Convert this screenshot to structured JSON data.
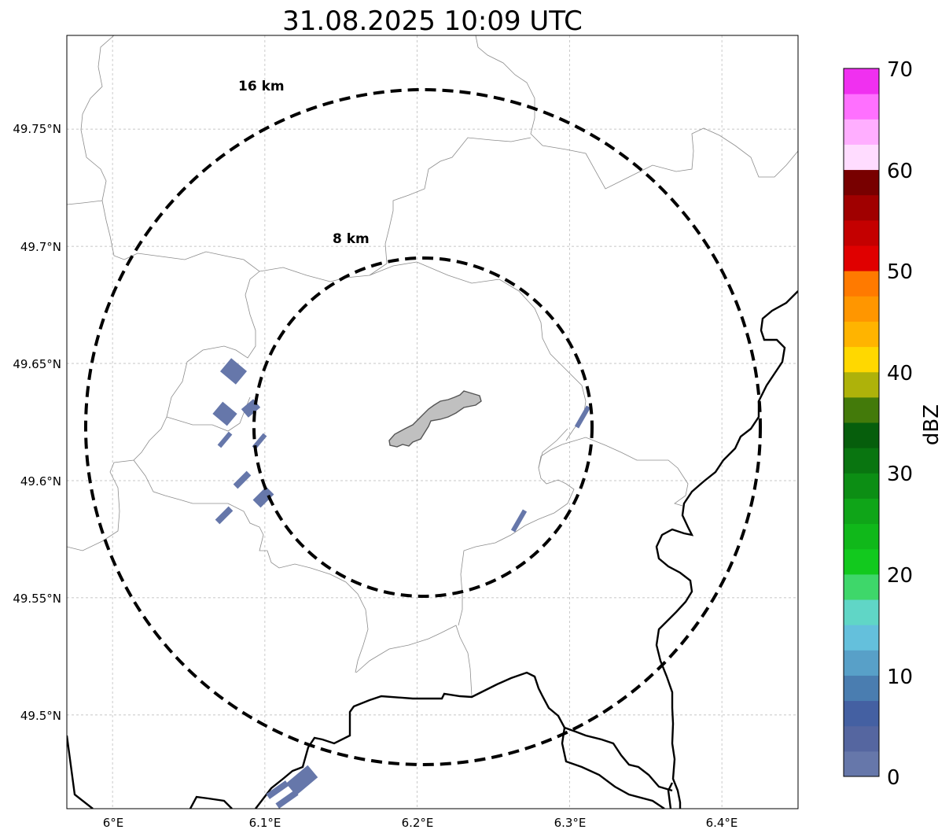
{
  "map": {
    "title": "31.08.2025 10:09 UTC",
    "lat_ticks": [
      "49.75°N",
      "49.7°N",
      "49.65°N",
      "49.6°N",
      "49.55°N",
      "49.5°N"
    ],
    "lon_ticks": [
      "6°E",
      "6.1°E",
      "6.2°E",
      "6.3°E",
      "6.4°E"
    ],
    "lat_values": [
      49.75,
      49.7,
      49.65,
      49.6,
      49.55,
      49.5
    ],
    "lon_values": [
      6.0,
      6.1,
      6.2,
      6.3,
      6.4
    ],
    "extent": {
      "lon_min": 5.97,
      "lon_max": 6.45,
      "lat_min": 49.46,
      "lat_max": 49.79
    },
    "radar_center": {
      "lon": 6.203,
      "lat": 49.623
    },
    "range_rings": [
      {
        "label": "8 km",
        "radius_km": 8
      },
      {
        "label": "16 km",
        "radius_km": 16
      }
    ],
    "urban_area_color": "#c0c0c0",
    "echo_color": "#6677aa",
    "border_color": "#000000",
    "admin_line_color": "#8c8c8c"
  },
  "colorbar": {
    "label": "dBZ",
    "min": 0,
    "max": 70,
    "ticks": [
      "0",
      "10",
      "20",
      "30",
      "40",
      "50",
      "60",
      "70"
    ],
    "colors": [
      "#6677aa",
      "#5566a0",
      "#4460a2",
      "#4a7db0",
      "#58a0c8",
      "#64c0dc",
      "#60d6c6",
      "#3ed76a",
      "#12c91e",
      "#10b81a",
      "#0fa518",
      "#0c8e14",
      "#097510",
      "#065e0c",
      "#437a0a",
      "#aeb20a",
      "#ffd800",
      "#ffb400",
      "#ff9600",
      "#ff7a00",
      "#e00000",
      "#c40000",
      "#a00000",
      "#780000",
      "#ffdcff",
      "#ffaeff",
      "#ff70ff",
      "#f030f0"
    ]
  }
}
